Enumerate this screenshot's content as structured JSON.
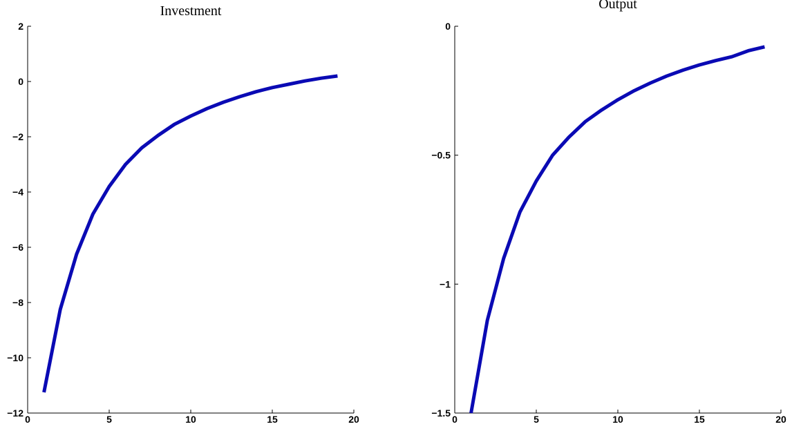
{
  "chart_data": [
    {
      "type": "line",
      "title": "Investment",
      "x": [
        1,
        2,
        3,
        4,
        5,
        6,
        7,
        8,
        9,
        10,
        11,
        12,
        13,
        14,
        15,
        16,
        17,
        18,
        19
      ],
      "series": [
        {
          "color": "#0a0ab4",
          "values": [
            -11.25,
            -8.25,
            -6.25,
            -4.8,
            -3.8,
            -3.0,
            -2.4,
            -1.95,
            -1.55,
            -1.25,
            -0.98,
            -0.75,
            -0.55,
            -0.37,
            -0.22,
            -0.1,
            0.02,
            0.12,
            0.2
          ]
        }
      ],
      "xlim": [
        0,
        20
      ],
      "xticks": [
        0,
        5,
        10,
        15,
        20
      ],
      "ylim": [
        -12,
        2
      ],
      "yticks": [
        {
          "value": -12,
          "label": "−12"
        },
        {
          "value": -10,
          "label": "−10"
        },
        {
          "value": -8,
          "label": "−8"
        },
        {
          "value": -6,
          "label": "−6"
        },
        {
          "value": -4,
          "label": "−4"
        },
        {
          "value": -2,
          "label": "−2"
        },
        0,
        2
      ]
    },
    {
      "type": "line",
      "title": "Output",
      "x": [
        1,
        2,
        3,
        4,
        5,
        6,
        7,
        8,
        9,
        10,
        11,
        12,
        13,
        14,
        15,
        16,
        17,
        18,
        19
      ],
      "series": [
        {
          "color": "#0a0ab4",
          "values": [
            -1.5,
            -1.14,
            -0.9,
            -0.72,
            -0.6,
            -0.5,
            -0.43,
            -0.37,
            -0.325,
            -0.285,
            -0.25,
            -0.22,
            -0.193,
            -0.17,
            -0.15,
            -0.133,
            -0.118,
            -0.095,
            -0.08
          ]
        }
      ],
      "xlim": [
        0,
        20
      ],
      "xticks": [
        0,
        5,
        10,
        15,
        20
      ],
      "ylim": [
        -1.5,
        0
      ],
      "yticks": [
        {
          "value": -1.5,
          "label": "−1.5"
        },
        {
          "value": -1,
          "label": "−1"
        },
        {
          "value": -0.5,
          "label": "−0.5"
        },
        0
      ]
    }
  ]
}
